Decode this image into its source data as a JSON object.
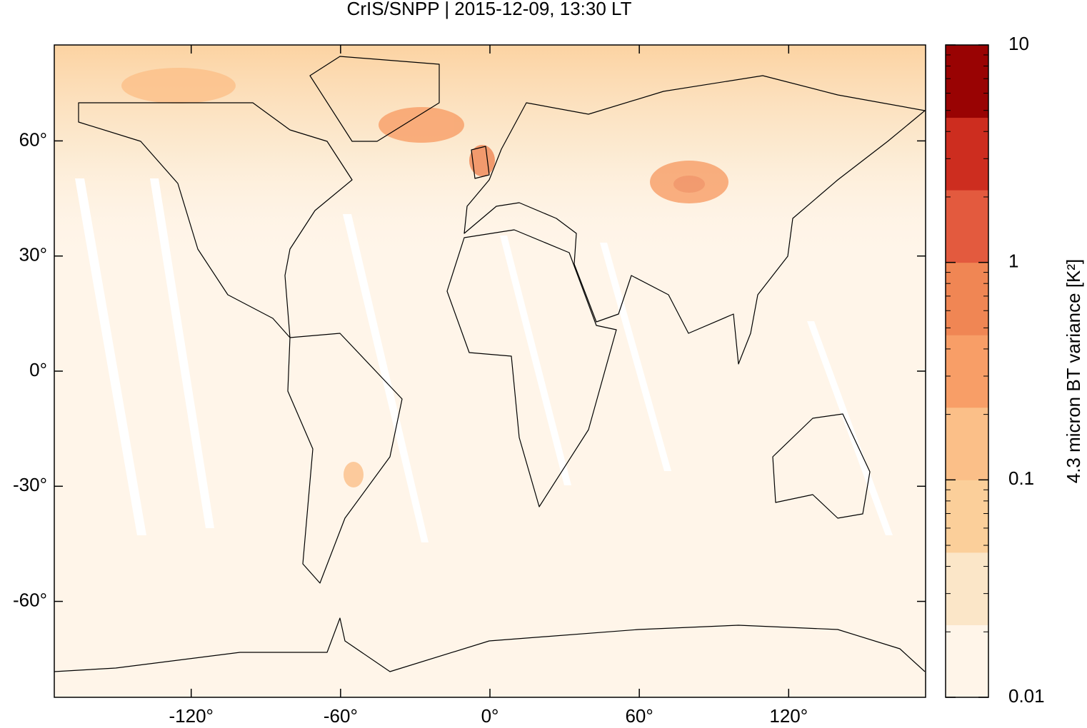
{
  "chart_data": {
    "type": "map",
    "title": "CrIS/SNPP | 2015-12-09, 13:30 LT",
    "xlim": [
      -175,
      175
    ],
    "xticks": [
      {
        "value": -120,
        "label": "-120°"
      },
      {
        "value": -60,
        "label": "-60°"
      },
      {
        "value": 0,
        "label": "0°"
      },
      {
        "value": 60,
        "label": "60°"
      },
      {
        "value": 120,
        "label": "120°"
      }
    ],
    "ylim": [
      -85,
      85
    ],
    "yticks": [
      {
        "value": 60,
        "label": "60°"
      },
      {
        "value": 30,
        "label": "30°"
      },
      {
        "value": 0,
        "label": "0°"
      },
      {
        "value": -30,
        "label": "-30°"
      },
      {
        "value": -60,
        "label": "-60°"
      }
    ],
    "colorbar": {
      "label": "4.3 micron BT variance [K²]",
      "log": true,
      "lim": [
        0.01,
        10
      ],
      "ticks": [
        0.01,
        0.1,
        1,
        10
      ],
      "colors": [
        "#fff5e9",
        "#fbe6c8",
        "#fbcf9a",
        "#fbbf88",
        "#f89e67",
        "#f08654",
        "#e35a3e",
        "#cd2d1f",
        "#990303"
      ]
    }
  }
}
